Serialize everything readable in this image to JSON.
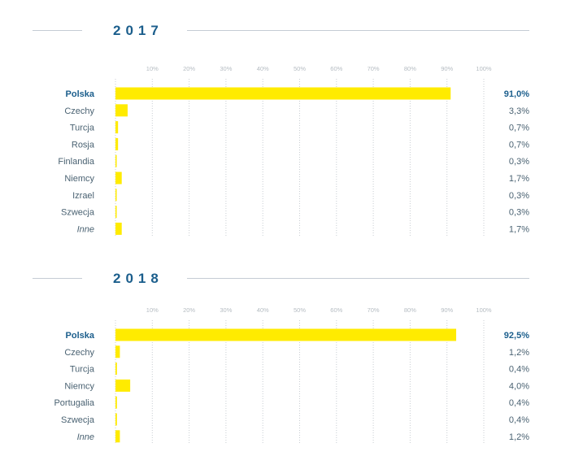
{
  "chart_data": [
    {
      "type": "bar",
      "orientation": "horizontal",
      "title": "2017",
      "categories": [
        "Polska",
        "Czechy",
        "Turcja",
        "Rosja",
        "Finlandia",
        "Niemcy",
        "Izrael",
        "Szwecja",
        "Inne"
      ],
      "values": [
        91.0,
        3.3,
        0.7,
        0.7,
        0.3,
        1.7,
        0.3,
        0.3,
        1.7
      ],
      "value_labels": [
        "91,0%",
        "3,3%",
        "0,7%",
        "0,7%",
        "0,3%",
        "1,7%",
        "0,3%",
        "0,3%",
        "1,7%"
      ],
      "ticks": [
        "10%",
        "20%",
        "30%",
        "40%",
        "50%",
        "60%",
        "70%",
        "80%",
        "90%",
        "100%"
      ],
      "xlim": [
        0,
        100
      ],
      "grid": true
    },
    {
      "type": "bar",
      "orientation": "horizontal",
      "title": "2018",
      "categories": [
        "Polska",
        "Czechy",
        "Turcja",
        "Niemcy",
        "Portugalia",
        "Szwecja",
        "Inne"
      ],
      "values": [
        92.5,
        1.2,
        0.4,
        4.0,
        0.4,
        0.4,
        1.2
      ],
      "value_labels": [
        "92,5%",
        "1,2%",
        "0,4%",
        "4,0%",
        "0,4%",
        "0,4%",
        "1,2%"
      ],
      "ticks": [
        "10%",
        "20%",
        "30%",
        "40%",
        "50%",
        "60%",
        "70%",
        "80%",
        "90%",
        "100%"
      ],
      "xlim": [
        0,
        100
      ],
      "grid": true
    }
  ],
  "colors": {
    "bar": "#ffeb00",
    "title": "#1b5e8c",
    "highlight_label": "#1b5e8c",
    "label": "#4a6272",
    "tick": "#b5bcc2",
    "grid": "#c8cdd2",
    "rule": "#c5ccd4"
  }
}
